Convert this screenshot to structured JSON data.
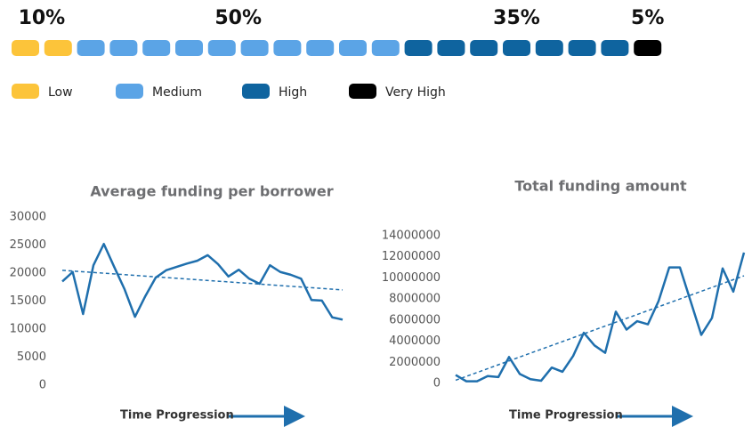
{
  "chart_data": [
    {
      "type": "segments",
      "categories": [
        "Low",
        "Medium",
        "High",
        "Very High"
      ],
      "values": [
        10,
        50,
        35,
        5
      ],
      "value_labels": [
        "10%",
        "50%",
        "35%",
        "5%"
      ],
      "colors": [
        "#fcc43a",
        "#5ba4e6",
        "#0f649f",
        "#000000"
      ]
    },
    {
      "type": "line",
      "title": "Average funding per borrower",
      "xlabel": "Time Progression",
      "categories": [
        null,
        null,
        null,
        null,
        null,
        null,
        null,
        null,
        null,
        null,
        null,
        null,
        null,
        null,
        null,
        null,
        null,
        null,
        null,
        null,
        null,
        null,
        null,
        null,
        null,
        null,
        null,
        null
      ],
      "values": [
        18500,
        20200,
        12700,
        21400,
        25200,
        21100,
        17100,
        12200,
        15900,
        19200,
        20500,
        21100,
        21700,
        22200,
        23200,
        21600,
        19400,
        20600,
        19000,
        18100,
        21400,
        20200,
        19700,
        19000,
        15200,
        15100,
        12100,
        11700
      ],
      "trend": [
        20500,
        17000
      ],
      "color": "#1f6fad",
      "ylim": [
        0,
        30000
      ],
      "yticks": [
        0,
        5000,
        10000,
        15000,
        20000,
        25000,
        30000
      ]
    },
    {
      "type": "line",
      "title": "Total funding amount",
      "xlabel": "Time Progression",
      "categories": [
        null,
        null,
        null,
        null,
        null,
        null,
        null,
        null,
        null,
        null,
        null,
        null,
        null,
        null,
        null,
        null,
        null,
        null,
        null,
        null,
        null,
        null,
        null,
        null,
        null,
        null,
        null,
        null
      ],
      "values": [
        800000,
        200000,
        200000,
        700000,
        600000,
        2500000,
        900000,
        400000,
        250000,
        1500000,
        1100000,
        2600000,
        4800000,
        3600000,
        2900000,
        6800000,
        5100000,
        5900000,
        5600000,
        7800000,
        11000000,
        11000000,
        7800000,
        4600000,
        6200000,
        10900000,
        8700000,
        12400000
      ],
      "trend": [
        300000,
        10200000
      ],
      "color": "#1f6fad",
      "ylim": [
        0,
        14000000
      ],
      "yticks": [
        0,
        2000000,
        4000000,
        6000000,
        8000000,
        10000000,
        12000000,
        14000000
      ]
    }
  ]
}
